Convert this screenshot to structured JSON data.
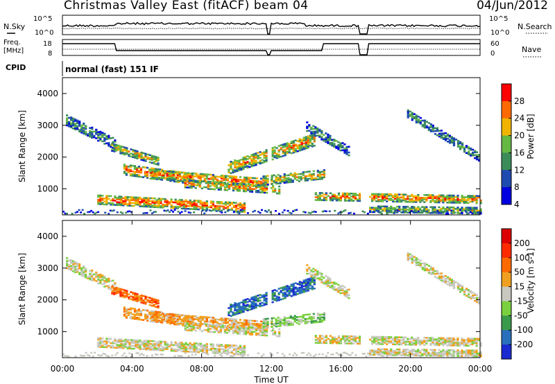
{
  "header": {
    "title": "Christmas Valley East (fitACF) beam 04",
    "date": "04/Jun/2012"
  },
  "panels": {
    "nsky": {
      "label": "N.Sky",
      "right_label": "N.Search",
      "tick_left_top": "10^5",
      "tick_left_bottom": "10^0",
      "tick_right_top": "10^5",
      "tick_right_bottom": "10^0"
    },
    "freq": {
      "label_line1": "Freq.",
      "label_line2": "[MHz]",
      "right_label": "Nave",
      "tick_left_top": "18",
      "tick_left_bottom": "8",
      "tick_right_top": "60",
      "tick_right_bottom": "0"
    },
    "cpid": {
      "label": "CPID",
      "text": "normal (fast) 151 IF"
    }
  },
  "chart_data": [
    {
      "type": "heatmap",
      "name": "power",
      "ylabel": "Slant Range [km]",
      "y_ticks": [
        "4000",
        "3000",
        "2000",
        "1000"
      ],
      "ylim": [
        180,
        4500
      ],
      "colorbar_label": "Power [dB]",
      "colorbar_ticks": [
        "28",
        "24",
        "20",
        "16",
        "12",
        "8",
        "4"
      ],
      "colors": [
        "#0000e0",
        "#1e4bb0",
        "#3c8c5a",
        "#66b844",
        "#f0b400",
        "#ff6a00",
        "#ff0000"
      ]
    },
    {
      "type": "heatmap",
      "name": "velocity",
      "ylabel": "Slant Range [km]",
      "xlabel": "Time UT",
      "y_ticks": [
        "4000",
        "3000",
        "2000",
        "1000"
      ],
      "ylim": [
        180,
        4500
      ],
      "x_ticks": [
        "00:00",
        "04:00",
        "08:00",
        "12:00",
        "16:00",
        "20:00",
        "00:00"
      ],
      "colorbar_label": "Velocity [m s-1]",
      "colorbar_ticks": [
        "200",
        "100",
        "50",
        "15",
        "-15",
        "-50",
        "-100",
        "-200"
      ],
      "colors": [
        "#1a2ad0",
        "#286fbc",
        "#3a9a4c",
        "#7ad040",
        "#c8c8c0",
        "#f0a020",
        "#ff6a00",
        "#ff2a00",
        "#dd0000"
      ]
    }
  ]
}
